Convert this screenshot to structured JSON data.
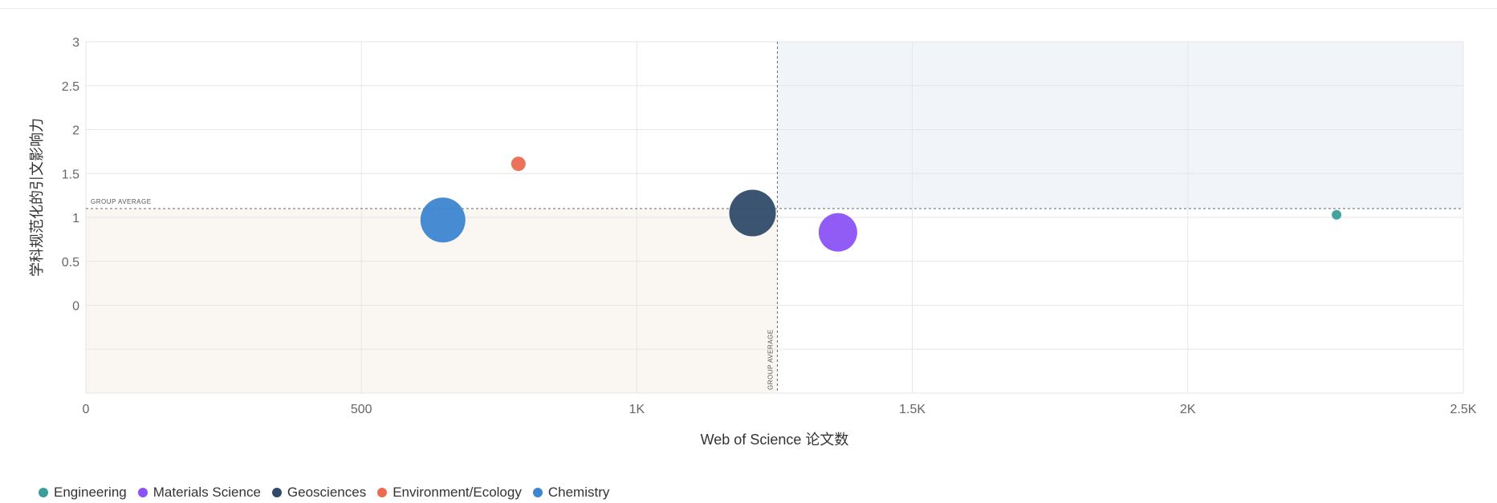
{
  "chart_data": {
    "type": "scatter",
    "title": "",
    "xlabel": "Web of Science 论文数",
    "ylabel": "学科规范化的引文影响力",
    "xlim": [
      0,
      2500
    ],
    "ylim": [
      -1,
      3
    ],
    "x_ticks": [
      {
        "value": 0,
        "label": "0"
      },
      {
        "value": 500,
        "label": "500"
      },
      {
        "value": 1000,
        "label": "1K"
      },
      {
        "value": 1500,
        "label": "1.5K"
      },
      {
        "value": 2000,
        "label": "2K"
      },
      {
        "value": 2500,
        "label": "2.5K"
      }
    ],
    "y_ticks": [
      {
        "value": 3,
        "label": "3"
      },
      {
        "value": 2.5,
        "label": "2.5"
      },
      {
        "value": 2,
        "label": "2"
      },
      {
        "value": 1.5,
        "label": "1.5"
      },
      {
        "value": 1,
        "label": "1"
      },
      {
        "value": 0.5,
        "label": "0.5"
      },
      {
        "value": 0,
        "label": "0"
      }
    ],
    "grid": true,
    "legend_position": "bottom-left",
    "group_average": {
      "x": 1255,
      "y": 1.1,
      "x_label": "GROUP AVERAGE",
      "y_label": "GROUP AVERAGE"
    },
    "series": [
      {
        "name": "Engineering",
        "color": "#3a9e9b",
        "points": [
          {
            "x": 2270,
            "y": 1.03,
            "size": 6
          }
        ]
      },
      {
        "name": "Materials Science",
        "color": "#8b52f5",
        "points": [
          {
            "x": 1365,
            "y": 0.83,
            "size": 24
          }
        ]
      },
      {
        "name": "Geosciences",
        "color": "#2f4b69",
        "points": [
          {
            "x": 1210,
            "y": 1.05,
            "size": 29
          }
        ]
      },
      {
        "name": "Environment/Ecology",
        "color": "#ea6a52",
        "points": [
          {
            "x": 785,
            "y": 1.61,
            "size": 9
          }
        ]
      },
      {
        "name": "Chemistry",
        "color": "#3d86d0",
        "points": [
          {
            "x": 648,
            "y": 0.97,
            "size": 28
          }
        ]
      }
    ],
    "quadrant_fill": {
      "upper_right": "#f1f5f9",
      "lower_left": "#faf7f2"
    }
  }
}
